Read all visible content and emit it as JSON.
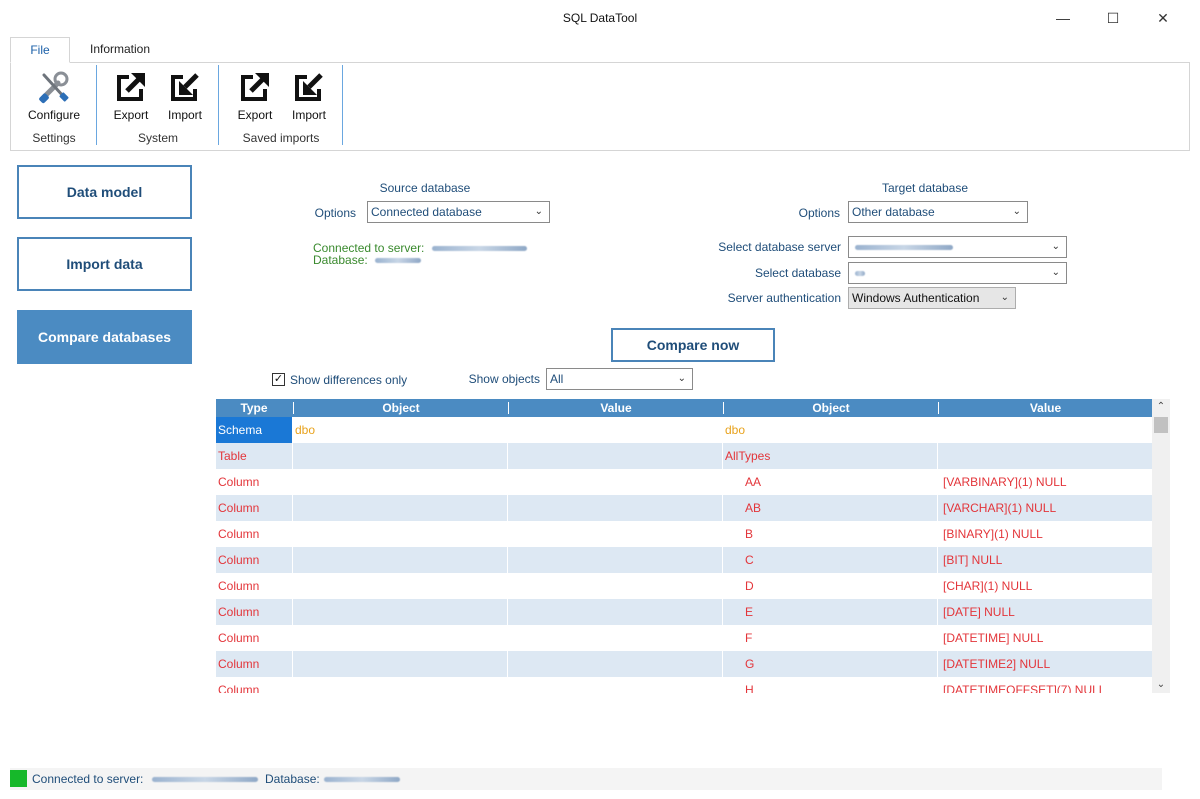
{
  "window": {
    "title": "SQL DataTool"
  },
  "tabs": {
    "file": "File",
    "information": "Information"
  },
  "ribbon": {
    "settings": {
      "label": "Settings",
      "configure": "Configure"
    },
    "system": {
      "label": "System",
      "export": "Export",
      "import": "Import"
    },
    "saved_imports": {
      "label": "Saved imports",
      "export": "Export",
      "import": "Import"
    }
  },
  "nav": {
    "data_model": "Data model",
    "import_data": "Import data",
    "compare_databases": "Compare databases"
  },
  "source": {
    "heading": "Source database",
    "options_label": "Options",
    "options_value": "Connected database",
    "connected_label": "Connected to server:",
    "database_label": "Database:"
  },
  "target": {
    "heading": "Target database",
    "options_label": "Options",
    "options_value": "Other database",
    "server_label": "Select database server",
    "database_label": "Select database",
    "auth_label": "Server authentication",
    "auth_value": "Windows Authentication"
  },
  "compare_button": "Compare now",
  "filters": {
    "show_differences_label": "Show differences only",
    "show_differences_checked": true,
    "show_objects_label": "Show objects",
    "show_objects_value": "All"
  },
  "grid": {
    "headers": [
      "Type",
      "Object",
      "Value",
      "Object",
      "Value"
    ],
    "rows": [
      {
        "type": "Schema",
        "obj1": "dbo",
        "val1": "",
        "obj2": "dbo",
        "val2": ""
      },
      {
        "type": "Table",
        "obj1": "",
        "val1": "",
        "obj2": "AllTypes",
        "val2": ""
      },
      {
        "type": "Column",
        "obj1": "",
        "val1": "",
        "obj2": "AA",
        "val2": "[VARBINARY](1) NULL"
      },
      {
        "type": "Column",
        "obj1": "",
        "val1": "",
        "obj2": "AB",
        "val2": "[VARCHAR](1) NULL"
      },
      {
        "type": "Column",
        "obj1": "",
        "val1": "",
        "obj2": "B",
        "val2": "[BINARY](1) NULL"
      },
      {
        "type": "Column",
        "obj1": "",
        "val1": "",
        "obj2": "C",
        "val2": "[BIT] NULL"
      },
      {
        "type": "Column",
        "obj1": "",
        "val1": "",
        "obj2": "D",
        "val2": "[CHAR](1) NULL"
      },
      {
        "type": "Column",
        "obj1": "",
        "val1": "",
        "obj2": "E",
        "val2": "[DATE] NULL"
      },
      {
        "type": "Column",
        "obj1": "",
        "val1": "",
        "obj2": "F",
        "val2": "[DATETIME] NULL"
      },
      {
        "type": "Column",
        "obj1": "",
        "val1": "",
        "obj2": "G",
        "val2": "[DATETIME2] NULL"
      },
      {
        "type": "Column",
        "obj1": "",
        "val1": "",
        "obj2": "H",
        "val2": "[DATETIMEOFFSET](7) NULL"
      }
    ]
  },
  "status": {
    "connected_label": "Connected to server:",
    "database_label": "Database:",
    "led_color": "#16b82a"
  },
  "colors": {
    "accent": "#4b8bc2",
    "diff_red": "#e3353a",
    "same_orange": "#e8a21c",
    "connected_green": "#3a8a2e"
  }
}
